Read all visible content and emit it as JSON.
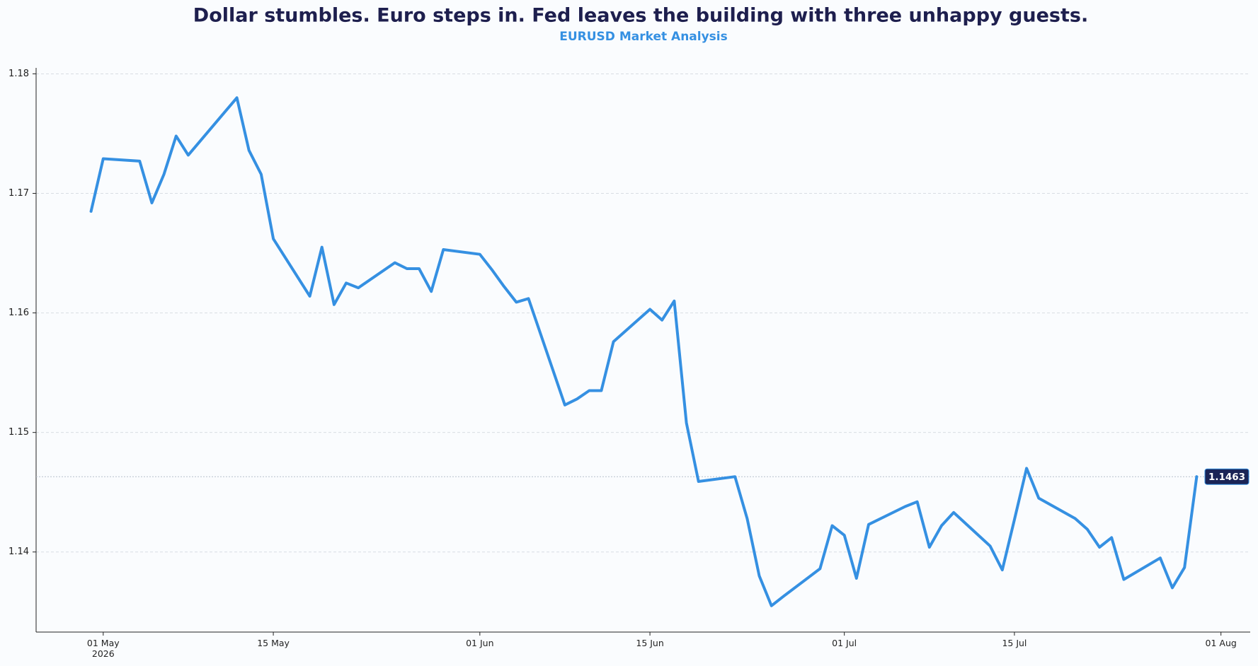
{
  "chart_data": {
    "type": "line",
    "title": "Dollar stumbles. Euro steps in. Fed leaves the building with three unhappy guests.",
    "subtitle": "EURUSD Market Analysis",
    "x": [
      "2026-04-30",
      "2026-05-01",
      "2026-05-04",
      "2026-05-05",
      "2026-05-06",
      "2026-05-07",
      "2026-05-08",
      "2026-05-11",
      "2026-05-12",
      "2026-05-13",
      "2026-05-14",
      "2026-05-15",
      "2026-05-18",
      "2026-05-19",
      "2026-05-20",
      "2026-05-21",
      "2026-05-22",
      "2026-05-25",
      "2026-05-26",
      "2026-05-27",
      "2026-05-28",
      "2026-05-29",
      "2026-06-01",
      "2026-06-02",
      "2026-06-03",
      "2026-06-04",
      "2026-06-05",
      "2026-06-08",
      "2026-06-09",
      "2026-06-10",
      "2026-06-11",
      "2026-06-12",
      "2026-06-15",
      "2026-06-16",
      "2026-06-17",
      "2026-06-18",
      "2026-06-19",
      "2026-06-22",
      "2026-06-23",
      "2026-06-24",
      "2026-06-25",
      "2026-06-26",
      "2026-06-29",
      "2026-06-30",
      "2026-07-01",
      "2026-07-02",
      "2026-07-03",
      "2026-07-06",
      "2026-07-07",
      "2026-07-08",
      "2026-07-09",
      "2026-07-10",
      "2026-07-13",
      "2026-07-14",
      "2026-07-15",
      "2026-07-16",
      "2026-07-17",
      "2026-07-20",
      "2026-07-21",
      "2026-07-22",
      "2026-07-23",
      "2026-07-24",
      "2026-07-27",
      "2026-07-28",
      "2026-07-29",
      "2026-07-30"
    ],
    "series": [
      {
        "name": "EURUSD",
        "color": "#3590e2",
        "values": [
          1.1685,
          1.1729,
          1.1727,
          1.1692,
          1.1716,
          1.1748,
          1.1732,
          1.1768,
          1.178,
          1.1736,
          1.1716,
          1.1662,
          1.1614,
          1.1655,
          1.1607,
          1.1625,
          1.1621,
          1.1642,
          1.1637,
          1.1637,
          1.1618,
          1.1653,
          1.1649,
          1.1636,
          1.1622,
          1.1609,
          1.1612,
          1.1523,
          1.1528,
          1.1535,
          1.1535,
          1.1576,
          1.1603,
          1.1594,
          1.161,
          1.1508,
          1.1459,
          1.1463,
          1.1428,
          1.138,
          1.1355,
          1.1363,
          1.1386,
          1.1422,
          1.1414,
          1.1378,
          1.1423,
          1.1438,
          1.1442,
          1.1404,
          1.1422,
          1.1433,
          1.1405,
          1.1385,
          1.1427,
          1.147,
          1.1445,
          1.1428,
          1.1419,
          1.1404,
          1.1412,
          1.1377,
          1.1395,
          1.137,
          1.1387,
          1.1463
        ]
      }
    ],
    "xlim": [
      "2026-04-26",
      "2026-08-03"
    ],
    "xticks": [
      {
        "value": "2026-05-01",
        "label": "01 May\n2026"
      },
      {
        "value": "2026-05-15",
        "label": "15 May"
      },
      {
        "value": "2026-06-01",
        "label": "01 Jun"
      },
      {
        "value": "2026-06-15",
        "label": "15 Jun"
      },
      {
        "value": "2026-07-01",
        "label": "01 Jul"
      },
      {
        "value": "2026-07-15",
        "label": "15 Jul"
      },
      {
        "value": "2026-08-01",
        "label": "01 Aug"
      }
    ],
    "ylim": [
      1.1333,
      1.1805
    ],
    "yticks": [
      1.14,
      1.15,
      1.16,
      1.17,
      1.18
    ],
    "grid": true
  }
}
